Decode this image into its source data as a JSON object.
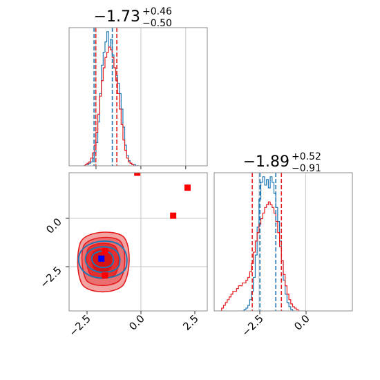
{
  "colors": {
    "red": "#e41a1c",
    "blue": "#1f77b4",
    "marker_blue": "#0000ff",
    "marker_red": "#ff0000",
    "grid": "#c8c8c8",
    "frame": "#888888"
  },
  "titles": {
    "panel_top": {
      "value": "−1.73",
      "upper": "+0.46",
      "lower": "−0.50"
    },
    "panel_right": {
      "value": "−1.89",
      "upper": "+0.52",
      "lower": "−0.91"
    }
  },
  "chart_data": [
    {
      "panel": "hist-x",
      "type": "histogram",
      "x_range": [
        -4.0,
        3.7
      ],
      "x_ticks": [
        -2.5,
        0.0,
        2.5
      ],
      "grid": true,
      "series": [
        {
          "color": "blue",
          "bins_start": -3.2,
          "bins_width": 0.1,
          "counts": [
            0,
            1,
            1,
            2,
            3,
            6,
            10,
            18,
            34,
            56,
            78,
            88,
            96,
            104,
            92,
            98,
            86,
            76,
            70,
            64,
            56,
            44,
            30,
            16,
            8,
            4,
            2,
            1,
            1,
            0,
            0
          ]
        },
        {
          "color": "red",
          "bins_start": -3.2,
          "bins_width": 0.1,
          "counts": [
            0,
            1,
            2,
            3,
            6,
            10,
            16,
            26,
            40,
            54,
            66,
            76,
            84,
            88,
            92,
            90,
            84,
            76,
            66,
            56,
            44,
            32,
            20,
            12,
            6,
            3,
            2,
            1,
            0,
            0,
            0
          ]
        }
      ],
      "quantile_lines": [
        {
          "color": "blue",
          "x": [
            -2.61,
            -1.59
          ]
        },
        {
          "color": "red",
          "x": [
            -2.51,
            -1.34
          ]
        }
      ]
    },
    {
      "panel": "scatter-2d",
      "type": "contour-scatter",
      "x_range": [
        -4.0,
        3.7
      ],
      "y_range": [
        -4.9,
        2.5
      ],
      "x_ticks": [
        "−2.5",
        "0.0",
        "2.5"
      ],
      "y_ticks": [
        "0.0",
        "−2.5"
      ],
      "grid": true,
      "markers": [
        {
          "color": "marker_blue",
          "x": -2.2,
          "y": -2.1
        },
        {
          "color": "marker_red",
          "x": -2.0,
          "y": -3.0
        },
        {
          "color": "marker_red",
          "x": -2.0,
          "y": -1.7
        },
        {
          "color": "marker_red",
          "x": 1.8,
          "y": 0.2
        },
        {
          "color": "marker_red",
          "x": 2.6,
          "y": 1.7
        },
        {
          "color": "marker_red",
          "x": -0.2,
          "y": 2.5
        }
      ]
    },
    {
      "panel": "hist-y",
      "type": "histogram",
      "x_range": [
        -4.9,
        2.5
      ],
      "x_ticks": [
        -2.5,
        0.0
      ],
      "grid": true,
      "series": [
        {
          "color": "blue",
          "bins_start": -3.4,
          "bins_width": 0.1,
          "counts": [
            0,
            1,
            2,
            4,
            8,
            14,
            24,
            40,
            60,
            80,
            92,
            96,
            90,
            94,
            88,
            96,
            92,
            84,
            74,
            64,
            50,
            36,
            22,
            12,
            6,
            3,
            1,
            0
          ]
        },
        {
          "color": "red",
          "bins_start": -4.6,
          "bins_width": 0.1,
          "counts": [
            0,
            2,
            4,
            6,
            8,
            10,
            12,
            14,
            14,
            16,
            18,
            18,
            20,
            20,
            22,
            24,
            28,
            34,
            42,
            50,
            56,
            62,
            66,
            70,
            74,
            76,
            78,
            76,
            74,
            70,
            64,
            56,
            46,
            36,
            26,
            18,
            12,
            8,
            5,
            3,
            2,
            1,
            0
          ]
        }
      ],
      "quantile_lines": [
        {
          "color": "blue",
          "x": [
            -2.45,
            -1.6
          ]
        },
        {
          "color": "red",
          "x": [
            -2.86,
            -1.3
          ]
        }
      ]
    }
  ]
}
